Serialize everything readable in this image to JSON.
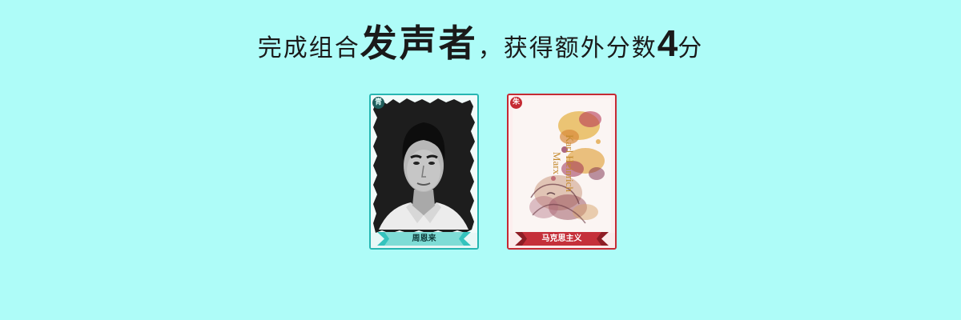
{
  "headline": {
    "prefix": "完成组合",
    "combo_name": "发声者",
    "middle": "，获得额外分数",
    "bonus_points": "4",
    "suffix": "分"
  },
  "cards": [
    {
      "name": "周恩来",
      "badge": "青",
      "frame_color": "#27b6b2",
      "image": "portrait-photo"
    },
    {
      "name": "马克思主义",
      "badge": "朱",
      "frame_color": "#c52a33",
      "portrait_text_line1": "Karl Heinrich",
      "portrait_text_line2": "Marx",
      "image": "watercolor-portrait"
    }
  ]
}
